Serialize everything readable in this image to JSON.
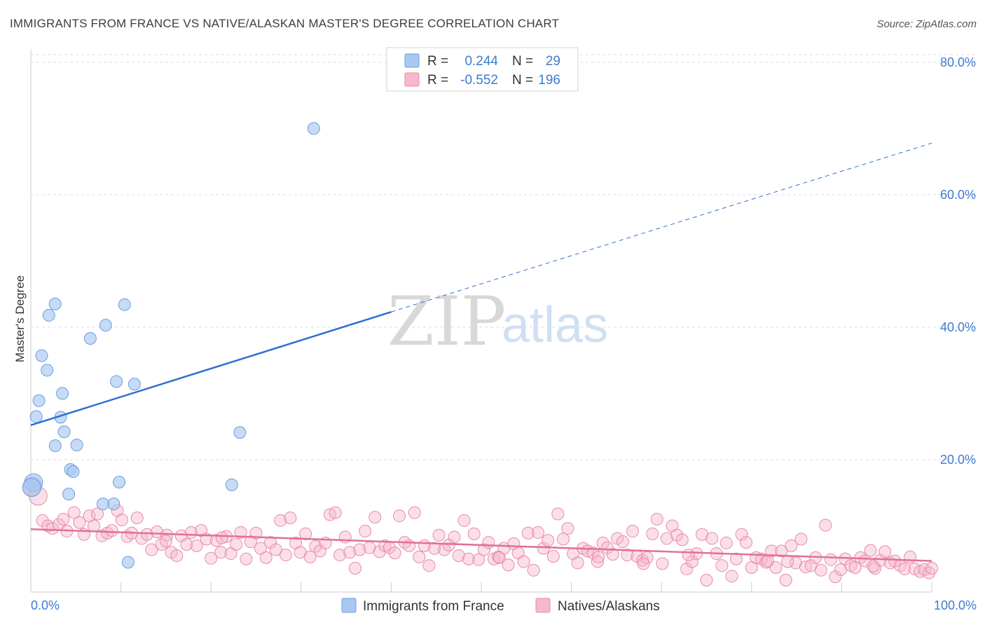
{
  "header": {
    "title": "IMMIGRANTS FROM FRANCE VS NATIVE/ALASKAN MASTER'S DEGREE CORRELATION CHART",
    "source": "Source: ZipAtlas.com"
  },
  "watermark": {
    "zip": "ZIP",
    "atlas": "atlas"
  },
  "legend": {
    "rows": [
      {
        "r_label": "R =",
        "r_value": "0.244",
        "n_label": "N =",
        "n_value": "29",
        "color": "#a8c8f0",
        "stroke": "#6b9ee0"
      },
      {
        "r_label": "R =",
        "r_value": "-0.552",
        "n_label": "N =",
        "n_value": "196",
        "color": "#f7b8cc",
        "stroke": "#e88aa8"
      }
    ]
  },
  "bottom_legend": {
    "items": [
      {
        "label": "Immigrants from France",
        "color": "#a8c8f0",
        "stroke": "#6b9ee0"
      },
      {
        "label": "Natives/Alaskans",
        "color": "#f7b8cc",
        "stroke": "#e88aa8"
      }
    ]
  },
  "chart_data": {
    "type": "scatter",
    "title": "IMMIGRANTS FROM FRANCE VS NATIVE/ALASKAN MASTER'S DEGREE CORRELATION CHART",
    "ylabel": "Master's Degree",
    "xlabel": "",
    "xlim": [
      0,
      100
    ],
    "ylim": [
      0,
      82
    ],
    "x_ticks": [
      "0.0%",
      "100.0%"
    ],
    "y_ticks": [
      {
        "value": 20,
        "label": "20.0%"
      },
      {
        "value": 40,
        "label": "40.0%"
      },
      {
        "value": 60,
        "label": "60.0%"
      },
      {
        "value": 80,
        "label": "80.0%"
      }
    ],
    "grid": "horizontal-dashed",
    "legend_position": "top-center",
    "series": [
      {
        "name": "Immigrants from France",
        "color": "#a8c8f0",
        "stroke": "#6b9ee0",
        "line_color": "#2f6fcf",
        "trend": {
          "x0": 0,
          "y0": 25.2,
          "x1": 40,
          "y1": 42.3,
          "dash_to_x": 100,
          "dash_to_y": 67.8
        },
        "points": [
          [
            0.2,
            16.2
          ],
          [
            0.6,
            26.5
          ],
          [
            0.9,
            28.9
          ],
          [
            1.2,
            35.7
          ],
          [
            1.8,
            33.5
          ],
          [
            2.0,
            41.8
          ],
          [
            2.7,
            43.5
          ],
          [
            3.5,
            30.0
          ],
          [
            3.3,
            26.4
          ],
          [
            2.7,
            22.1
          ],
          [
            3.7,
            24.2
          ],
          [
            5.1,
            22.2
          ],
          [
            4.4,
            18.5
          ],
          [
            4.7,
            18.2
          ],
          [
            4.2,
            14.8
          ],
          [
            6.6,
            38.3
          ],
          [
            8.3,
            40.3
          ],
          [
            9.5,
            31.8
          ],
          [
            10.4,
            43.4
          ],
          [
            11.5,
            31.4
          ],
          [
            9.8,
            16.6
          ],
          [
            9.2,
            13.3
          ],
          [
            8.0,
            13.3
          ],
          [
            10.8,
            4.5
          ],
          [
            31.4,
            70.0
          ],
          [
            23.2,
            24.1
          ],
          [
            22.3,
            16.2
          ],
          [
            0.3,
            16.5
          ],
          [
            0.1,
            15.8
          ]
        ]
      },
      {
        "name": "Natives/Alaskans",
        "color": "#f7b8cc",
        "stroke": "#e88aa8",
        "line_color": "#e0709a",
        "trend": {
          "x0": 0,
          "y0": 9.5,
          "x1": 100,
          "y1": 4.7
        },
        "points": [
          [
            0.2,
            16.0
          ],
          [
            0.8,
            14.5
          ],
          [
            1.3,
            10.8
          ],
          [
            1.9,
            10.0
          ],
          [
            2.4,
            9.6
          ],
          [
            3.1,
            10.2
          ],
          [
            3.6,
            11.0
          ],
          [
            4.0,
            9.2
          ],
          [
            4.8,
            12.0
          ],
          [
            5.4,
            10.5
          ],
          [
            5.9,
            8.7
          ],
          [
            6.5,
            11.5
          ],
          [
            7.0,
            10.0
          ],
          [
            7.4,
            11.8
          ],
          [
            7.9,
            8.5
          ],
          [
            8.5,
            8.9
          ],
          [
            9.0,
            9.3
          ],
          [
            9.6,
            12.3
          ],
          [
            10.1,
            10.9
          ],
          [
            10.7,
            8.4
          ],
          [
            11.2,
            8.9
          ],
          [
            11.8,
            11.2
          ],
          [
            12.3,
            8.1
          ],
          [
            12.9,
            8.7
          ],
          [
            13.4,
            6.4
          ],
          [
            14.0,
            9.1
          ],
          [
            14.5,
            7.2
          ],
          [
            15.1,
            8.6
          ],
          [
            15.6,
            6.0
          ],
          [
            16.2,
            5.5
          ],
          [
            16.7,
            8.5
          ],
          [
            17.3,
            7.2
          ],
          [
            17.8,
            9.0
          ],
          [
            18.4,
            7.0
          ],
          [
            18.9,
            9.3
          ],
          [
            19.5,
            8.0
          ],
          [
            20.0,
            5.1
          ],
          [
            20.6,
            7.8
          ],
          [
            21.1,
            6.0
          ],
          [
            21.7,
            8.4
          ],
          [
            22.2,
            5.8
          ],
          [
            22.8,
            7.2
          ],
          [
            23.3,
            9.0
          ],
          [
            23.9,
            5.0
          ],
          [
            24.4,
            7.6
          ],
          [
            25.0,
            8.9
          ],
          [
            25.5,
            6.6
          ],
          [
            26.1,
            5.2
          ],
          [
            26.6,
            7.5
          ],
          [
            27.2,
            6.4
          ],
          [
            27.7,
            10.8
          ],
          [
            28.3,
            5.6
          ],
          [
            28.8,
            11.2
          ],
          [
            29.4,
            7.4
          ],
          [
            29.9,
            6.0
          ],
          [
            30.5,
            8.8
          ],
          [
            31.0,
            5.3
          ],
          [
            31.6,
            6.9
          ],
          [
            32.1,
            6.2
          ],
          [
            32.7,
            7.4
          ],
          [
            33.2,
            11.7
          ],
          [
            33.8,
            12.0
          ],
          [
            34.3,
            5.6
          ],
          [
            34.9,
            8.3
          ],
          [
            35.4,
            6.0
          ],
          [
            36.0,
            3.6
          ],
          [
            36.5,
            6.4
          ],
          [
            37.1,
            9.2
          ],
          [
            37.6,
            6.7
          ],
          [
            38.2,
            11.3
          ],
          [
            38.7,
            6.1
          ],
          [
            39.3,
            7.0
          ],
          [
            39.8,
            6.7
          ],
          [
            40.4,
            5.9
          ],
          [
            40.9,
            11.5
          ],
          [
            41.5,
            7.5
          ],
          [
            42.0,
            7.0
          ],
          [
            42.6,
            12.0
          ],
          [
            43.1,
            5.3
          ],
          [
            43.7,
            7.0
          ],
          [
            44.2,
            4.0
          ],
          [
            44.8,
            6.6
          ],
          [
            45.3,
            8.6
          ],
          [
            45.9,
            6.4
          ],
          [
            46.4,
            7.1
          ],
          [
            47.0,
            8.3
          ],
          [
            47.5,
            5.5
          ],
          [
            48.1,
            10.8
          ],
          [
            48.6,
            5.0
          ],
          [
            49.2,
            8.8
          ],
          [
            49.7,
            4.9
          ],
          [
            50.3,
            6.4
          ],
          [
            50.8,
            7.5
          ],
          [
            51.4,
            5.0
          ],
          [
            51.9,
            5.3
          ],
          [
            52.5,
            6.6
          ],
          [
            53.0,
            4.1
          ],
          [
            53.6,
            7.3
          ],
          [
            54.1,
            5.9
          ],
          [
            54.7,
            4.6
          ],
          [
            55.2,
            8.9
          ],
          [
            55.8,
            3.3
          ],
          [
            56.3,
            9.0
          ],
          [
            56.9,
            6.6
          ],
          [
            57.4,
            7.8
          ],
          [
            58.0,
            5.4
          ],
          [
            58.5,
            11.8
          ],
          [
            59.1,
            8.0
          ],
          [
            59.6,
            9.6
          ],
          [
            60.2,
            5.8
          ],
          [
            60.7,
            4.4
          ],
          [
            61.3,
            6.6
          ],
          [
            61.8,
            6.2
          ],
          [
            62.4,
            5.9
          ],
          [
            62.9,
            4.6
          ],
          [
            63.5,
            7.4
          ],
          [
            64.0,
            6.7
          ],
          [
            64.6,
            5.7
          ],
          [
            65.1,
            8.1
          ],
          [
            65.7,
            7.6
          ],
          [
            66.2,
            5.6
          ],
          [
            66.8,
            9.2
          ],
          [
            67.3,
            5.4
          ],
          [
            67.9,
            4.8
          ],
          [
            68.4,
            5.2
          ],
          [
            69.0,
            8.8
          ],
          [
            69.5,
            11.0
          ],
          [
            70.1,
            4.3
          ],
          [
            70.6,
            8.1
          ],
          [
            71.2,
            10.0
          ],
          [
            71.7,
            8.6
          ],
          [
            72.3,
            7.9
          ],
          [
            72.8,
            3.5
          ],
          [
            73.4,
            4.6
          ],
          [
            73.9,
            5.8
          ],
          [
            74.5,
            8.7
          ],
          [
            75.0,
            1.8
          ],
          [
            75.6,
            8.1
          ],
          [
            76.1,
            5.8
          ],
          [
            76.7,
            4.0
          ],
          [
            77.2,
            7.4
          ],
          [
            77.8,
            2.4
          ],
          [
            78.3,
            5.0
          ],
          [
            78.9,
            8.7
          ],
          [
            79.4,
            7.5
          ],
          [
            80.0,
            3.7
          ],
          [
            80.5,
            5.2
          ],
          [
            81.1,
            5.0
          ],
          [
            81.6,
            4.5
          ],
          [
            82.2,
            6.2
          ],
          [
            82.7,
            3.7
          ],
          [
            83.3,
            6.2
          ],
          [
            83.8,
            1.8
          ],
          [
            84.4,
            7.0
          ],
          [
            84.9,
            4.4
          ],
          [
            85.5,
            8.0
          ],
          [
            86.0,
            3.8
          ],
          [
            86.6,
            4.0
          ],
          [
            87.1,
            5.2
          ],
          [
            87.7,
            3.3
          ],
          [
            88.2,
            10.1
          ],
          [
            88.8,
            4.9
          ],
          [
            89.3,
            2.3
          ],
          [
            89.9,
            3.4
          ],
          [
            90.4,
            5.0
          ],
          [
            91.0,
            4.0
          ],
          [
            91.5,
            3.7
          ],
          [
            92.1,
            5.2
          ],
          [
            92.6,
            4.7
          ],
          [
            93.2,
            6.3
          ],
          [
            93.7,
            3.6
          ],
          [
            94.3,
            4.8
          ],
          [
            94.8,
            6.1
          ],
          [
            95.4,
            4.4
          ],
          [
            95.9,
            4.7
          ],
          [
            96.5,
            4.0
          ],
          [
            97.0,
            3.5
          ],
          [
            97.6,
            5.3
          ],
          [
            98.1,
            3.5
          ],
          [
            98.7,
            3.1
          ],
          [
            99.2,
            3.4
          ],
          [
            99.7,
            2.9
          ],
          [
            100.0,
            3.6
          ],
          [
            21.2,
            8.2
          ],
          [
            15.0,
            7.7
          ],
          [
            68.0,
            4.3
          ],
          [
            73.0,
            5.6
          ],
          [
            81.8,
            4.7
          ],
          [
            84.0,
            4.6
          ],
          [
            93.5,
            3.9
          ],
          [
            52.0,
            5.2
          ],
          [
            63.0,
            5.3
          ]
        ]
      }
    ]
  }
}
